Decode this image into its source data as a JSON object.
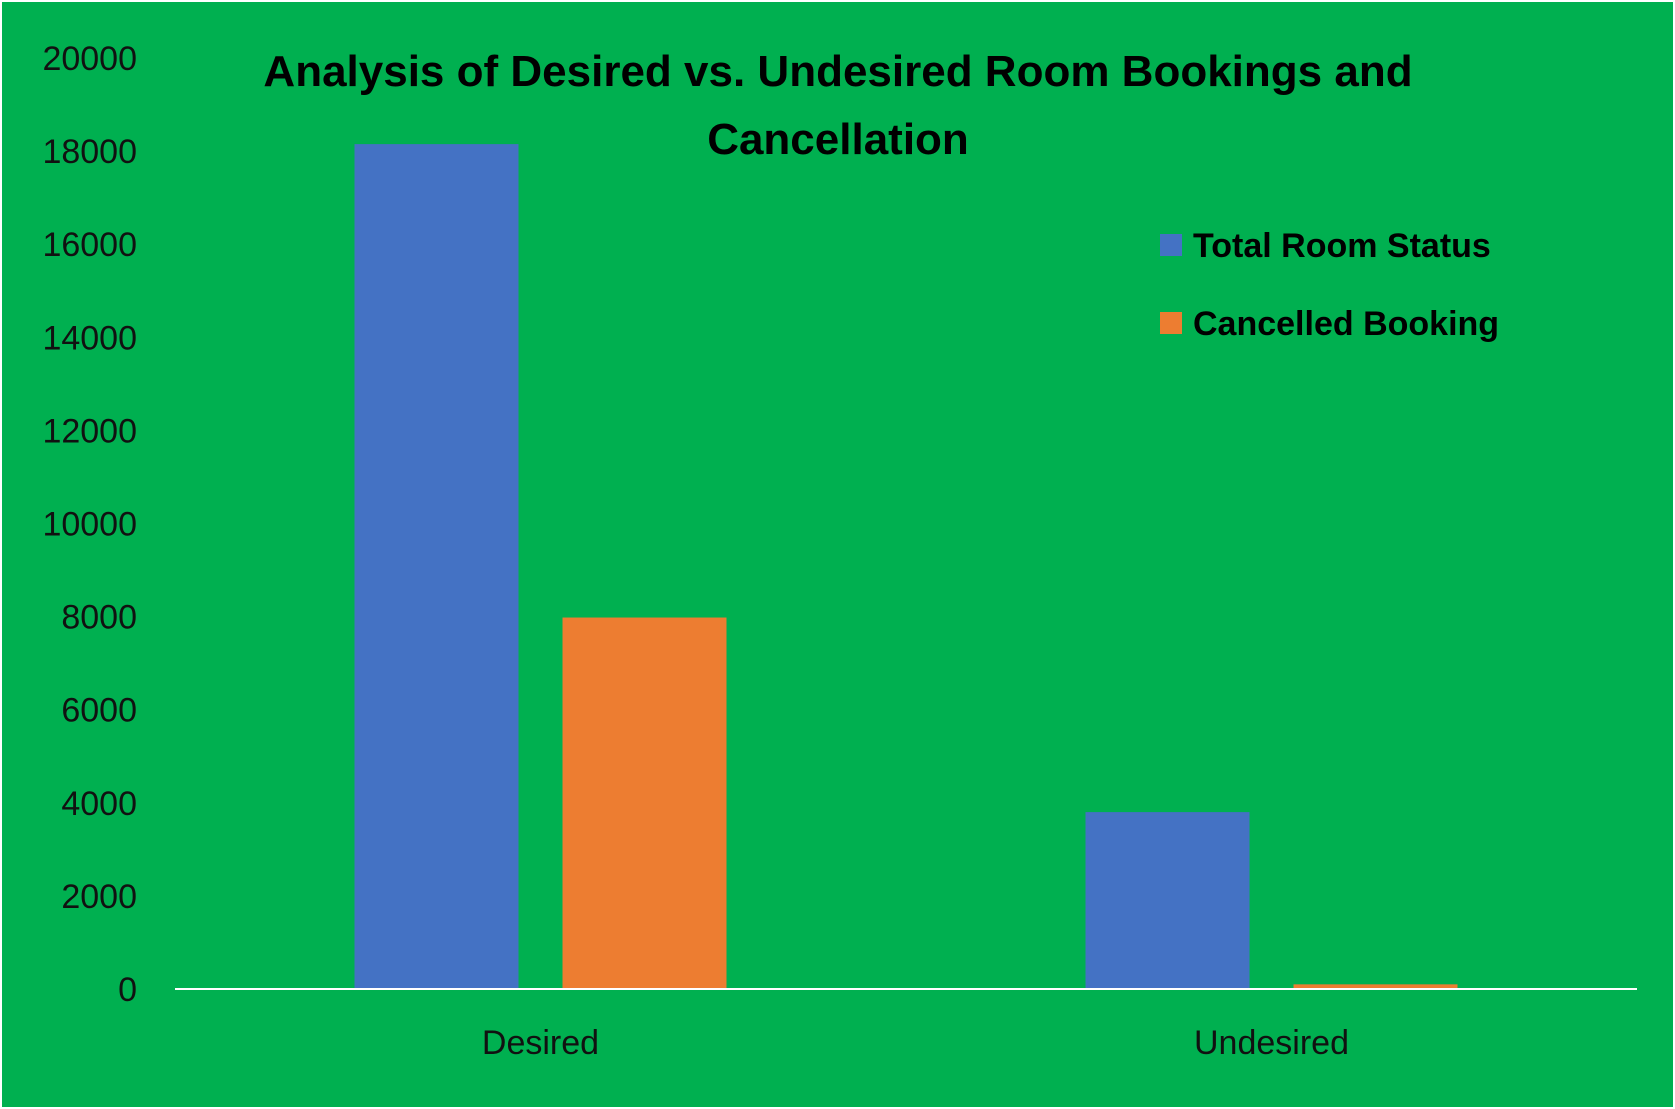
{
  "chart_data": {
    "type": "bar",
    "title_lines": [
      "Analysis of  Desired vs. Undesired  Room Bookings and",
      "Cancellation"
    ],
    "xlabel": "",
    "ylabel": "",
    "categories": [
      "Desired",
      "Undesired"
    ],
    "series": [
      {
        "name": "Total Room Status",
        "values": [
          18150,
          3800
        ],
        "color": "#4472C4"
      },
      {
        "name": "Cancelled Booking",
        "values": [
          7980,
          100
        ],
        "color": "#ED7D31"
      }
    ],
    "ylim": [
      0,
      20000
    ],
    "yticks": [
      0,
      2000,
      4000,
      6000,
      8000,
      10000,
      12000,
      14000,
      16000,
      18000,
      20000
    ],
    "grid": false,
    "legend_position": "top-right",
    "background_color": "#00B050",
    "axis_color": "#FFFFFF"
  }
}
